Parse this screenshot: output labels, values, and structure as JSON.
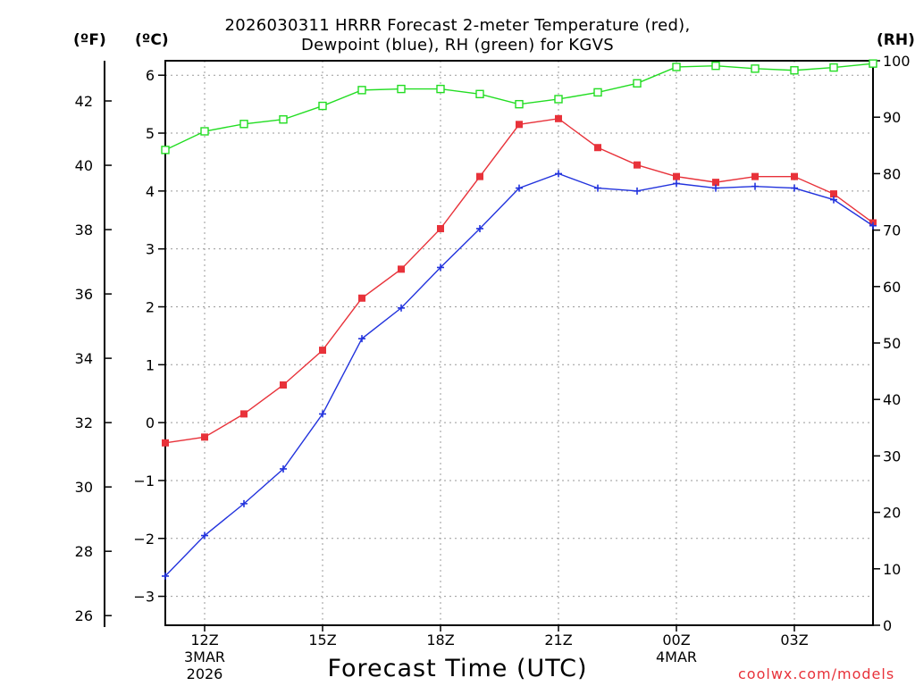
{
  "title": {
    "line1": "2026030311 HRRR Forecast 2-meter Temperature (red),",
    "line2": "Dewpoint (blue), RH (green) for KGVS"
  },
  "units": {
    "fahrenheit": "(ºF)",
    "celsius": "(ºC)",
    "rh": "(RH)"
  },
  "footer": {
    "xlabel": "Forecast Time (UTC)",
    "credit": "coolwx.com/models"
  },
  "chart_data": {
    "type": "line",
    "title": "2026030311 HRRR Forecast 2-meter Temperature (red), Dewpoint (blue), RH (green) for KGVS",
    "xlabel": "Forecast Time (UTC)",
    "x_hours": [
      11,
      12,
      13,
      14,
      15,
      16,
      17,
      18,
      19,
      20,
      21,
      22,
      23,
      24,
      25,
      26,
      27,
      28,
      29
    ],
    "xlim": [
      11,
      29
    ],
    "x_ticks": [
      {
        "hour": 12,
        "lines": [
          "12Z",
          "3MAR",
          "2026"
        ]
      },
      {
        "hour": 15,
        "lines": [
          "15Z"
        ]
      },
      {
        "hour": 18,
        "lines": [
          "18Z"
        ]
      },
      {
        "hour": 21,
        "lines": [
          "21Z"
        ]
      },
      {
        "hour": 24,
        "lines": [
          "00Z",
          "4MAR"
        ]
      },
      {
        "hour": 27,
        "lines": [
          "03Z"
        ]
      }
    ],
    "y_celsius": {
      "ylim": [
        -3.5,
        6.25
      ],
      "ticks": [
        -3,
        -2,
        -1,
        0,
        1,
        2,
        3,
        4,
        5,
        6
      ],
      "tick_labels": [
        "−3",
        "−2",
        "−1",
        "0",
        "1",
        "2",
        "3",
        "4",
        "5",
        "6"
      ]
    },
    "y_fahrenheit": {
      "ticks": [
        26,
        28,
        30,
        32,
        34,
        36,
        38,
        40,
        42
      ]
    },
    "y_rh": {
      "ylim": [
        0,
        100
      ],
      "ticks": [
        0,
        10,
        20,
        30,
        40,
        50,
        60,
        70,
        80,
        90,
        100
      ]
    },
    "series": [
      {
        "name": "Temperature",
        "axis": "celsius",
        "color": "#e8323a",
        "marker": "filled-square",
        "values": [
          -0.35,
          -0.25,
          0.15,
          0.65,
          1.25,
          2.15,
          2.65,
          3.35,
          4.25,
          5.15,
          5.25,
          4.75,
          4.45,
          4.25,
          4.15,
          4.25,
          4.25,
          3.95,
          3.45
        ]
      },
      {
        "name": "Dewpoint",
        "axis": "celsius",
        "color": "#2233dd",
        "marker": "plus",
        "values": [
          -2.65,
          -1.95,
          -1.4,
          -0.8,
          0.15,
          1.45,
          1.98,
          2.68,
          3.35,
          4.05,
          4.3,
          4.05,
          4.0,
          4.13,
          4.05,
          4.08,
          4.05,
          3.85,
          3.4
        ]
      },
      {
        "name": "RH",
        "axis": "rh",
        "color": "#22dd22",
        "marker": "open-square",
        "values": [
          84.2,
          87.5,
          88.8,
          89.6,
          92.0,
          94.8,
          95.0,
          95.0,
          94.1,
          92.3,
          93.2,
          94.4,
          96.0,
          98.9,
          99.1,
          98.6,
          98.3,
          98.8,
          99.5
        ]
      }
    ]
  }
}
